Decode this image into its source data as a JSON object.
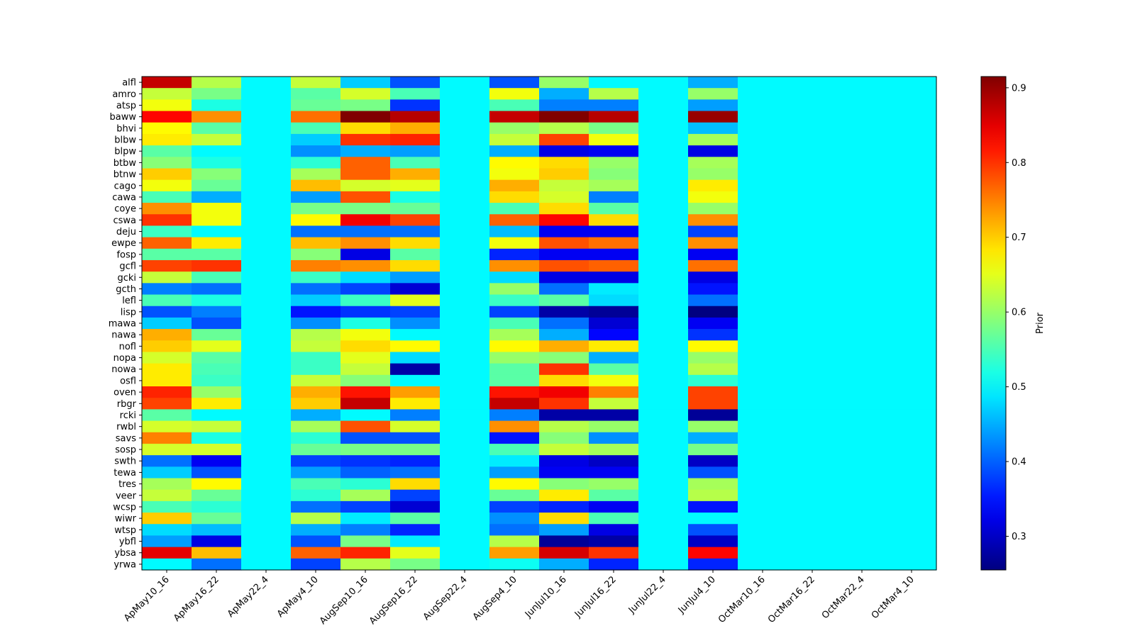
{
  "chart_data": {
    "type": "heatmap",
    "title": "",
    "xlabel": "",
    "ylabel": "",
    "colormap": "jet",
    "colorbar": {
      "label": "Prior",
      "vmin": 0.255,
      "vmax": 0.915,
      "ticks": [
        0.3,
        0.4,
        0.5,
        0.6,
        0.7,
        0.8,
        0.9
      ],
      "tick_labels": [
        "0.3",
        "0.4",
        "0.5",
        "0.6",
        "0.7",
        "0.8",
        "0.9"
      ]
    },
    "x_categories": [
      "ApMay10_16",
      "ApMay16_22",
      "ApMay22_4",
      "ApMay4_10",
      "AugSep10_16",
      "AugSep16_22",
      "AugSep22_4",
      "AugSep4_10",
      "JunJul10_16",
      "JunJul16_22",
      "JunJul22_4",
      "JunJul4_10",
      "OctMar10_16",
      "OctMar16_22",
      "OctMar22_4",
      "OctMar4_10"
    ],
    "y_categories": [
      "alfl",
      "amro",
      "atsp",
      "baww",
      "bhvi",
      "blbw",
      "blpw",
      "btbw",
      "btnw",
      "cago",
      "cawa",
      "coye",
      "cswa",
      "deju",
      "ewpe",
      "fosp",
      "gcfl",
      "gcki",
      "gcth",
      "lefl",
      "lisp",
      "mawa",
      "nawa",
      "nofl",
      "nopa",
      "nowa",
      "osfl",
      "oven",
      "rbgr",
      "rcki",
      "rwbl",
      "savs",
      "sosp",
      "swth",
      "tewa",
      "tres",
      "veer",
      "wcsp",
      "wiwr",
      "wtsp",
      "ybfl",
      "ybsa",
      "yrwa"
    ],
    "values": [
      [
        0.87,
        0.62,
        0.5,
        0.63,
        0.47,
        0.39,
        0.5,
        0.39,
        0.6,
        0.5,
        0.5,
        0.45,
        0.5,
        0.5,
        0.5,
        0.5
      ],
      [
        0.63,
        0.58,
        0.5,
        0.56,
        0.64,
        0.55,
        0.5,
        0.66,
        0.45,
        0.62,
        0.5,
        0.6,
        0.5,
        0.5,
        0.5,
        0.5
      ],
      [
        0.66,
        0.52,
        0.5,
        0.57,
        0.58,
        0.37,
        0.5,
        0.55,
        0.42,
        0.42,
        0.5,
        0.44,
        0.5,
        0.5,
        0.5,
        0.5
      ],
      [
        0.83,
        0.74,
        0.5,
        0.76,
        0.915,
        0.88,
        0.5,
        0.87,
        0.915,
        0.88,
        0.5,
        0.9,
        0.5,
        0.5,
        0.5,
        0.5
      ],
      [
        0.67,
        0.56,
        0.5,
        0.55,
        0.69,
        0.72,
        0.5,
        0.6,
        0.62,
        0.58,
        0.5,
        0.46,
        0.5,
        0.5,
        0.5,
        0.5
      ],
      [
        0.68,
        0.63,
        0.5,
        0.47,
        0.8,
        0.81,
        0.5,
        0.63,
        0.79,
        0.66,
        0.5,
        0.61,
        0.5,
        0.5,
        0.5,
        0.5
      ],
      [
        0.56,
        0.5,
        0.5,
        0.43,
        0.45,
        0.44,
        0.5,
        0.45,
        0.32,
        0.33,
        0.5,
        0.32,
        0.5,
        0.5,
        0.5,
        0.5
      ],
      [
        0.59,
        0.52,
        0.5,
        0.53,
        0.77,
        0.55,
        0.5,
        0.67,
        0.69,
        0.6,
        0.5,
        0.61,
        0.5,
        0.5,
        0.5,
        0.5
      ],
      [
        0.7,
        0.59,
        0.5,
        0.61,
        0.77,
        0.72,
        0.5,
        0.66,
        0.7,
        0.59,
        0.5,
        0.6,
        0.5,
        0.5,
        0.5,
        0.5
      ],
      [
        0.66,
        0.57,
        0.5,
        0.71,
        0.64,
        0.65,
        0.5,
        0.72,
        0.63,
        0.61,
        0.5,
        0.68,
        0.5,
        0.5,
        0.5,
        0.5
      ],
      [
        0.55,
        0.45,
        0.5,
        0.44,
        0.78,
        0.52,
        0.5,
        0.69,
        0.64,
        0.42,
        0.5,
        0.66,
        0.5,
        0.5,
        0.5,
        0.5
      ],
      [
        0.74,
        0.66,
        0.5,
        0.58,
        0.58,
        0.57,
        0.5,
        0.55,
        0.69,
        0.56,
        0.5,
        0.6,
        0.5,
        0.5,
        0.5,
        0.5
      ],
      [
        0.8,
        0.66,
        0.5,
        0.67,
        0.84,
        0.79,
        0.5,
        0.77,
        0.83,
        0.69,
        0.5,
        0.74,
        0.5,
        0.5,
        0.5,
        0.5
      ],
      [
        0.54,
        0.5,
        0.5,
        0.41,
        0.41,
        0.41,
        0.5,
        0.46,
        0.33,
        0.33,
        0.5,
        0.38,
        0.5,
        0.5,
        0.5,
        0.5
      ],
      [
        0.77,
        0.68,
        0.5,
        0.71,
        0.74,
        0.69,
        0.5,
        0.66,
        0.78,
        0.76,
        0.5,
        0.74,
        0.5,
        0.5,
        0.5,
        0.5
      ],
      [
        0.56,
        0.56,
        0.5,
        0.59,
        0.32,
        0.56,
        0.5,
        0.36,
        0.33,
        0.33,
        0.5,
        0.33,
        0.5,
        0.5,
        0.5,
        0.5
      ],
      [
        0.79,
        0.8,
        0.5,
        0.75,
        0.74,
        0.69,
        0.5,
        0.74,
        0.78,
        0.77,
        0.5,
        0.76,
        0.5,
        0.5,
        0.5,
        0.5
      ],
      [
        0.63,
        0.55,
        0.5,
        0.54,
        0.48,
        0.44,
        0.5,
        0.48,
        0.32,
        0.32,
        0.5,
        0.32,
        0.5,
        0.5,
        0.5,
        0.5
      ],
      [
        0.42,
        0.41,
        0.5,
        0.41,
        0.38,
        0.31,
        0.5,
        0.6,
        0.41,
        0.49,
        0.5,
        0.35,
        0.5,
        0.5,
        0.5,
        0.5
      ],
      [
        0.55,
        0.52,
        0.5,
        0.47,
        0.54,
        0.65,
        0.5,
        0.54,
        0.56,
        0.48,
        0.5,
        0.41,
        0.5,
        0.5,
        0.5,
        0.5
      ],
      [
        0.39,
        0.42,
        0.5,
        0.35,
        0.37,
        0.38,
        0.5,
        0.38,
        0.28,
        0.27,
        0.5,
        0.255,
        0.5,
        0.5,
        0.5,
        0.5
      ],
      [
        0.47,
        0.39,
        0.5,
        0.43,
        0.52,
        0.43,
        0.5,
        0.55,
        0.41,
        0.31,
        0.5,
        0.33,
        0.5,
        0.5,
        0.5,
        0.5
      ],
      [
        0.72,
        0.57,
        0.5,
        0.62,
        0.66,
        0.5,
        0.5,
        0.61,
        0.45,
        0.34,
        0.5,
        0.37,
        0.5,
        0.5,
        0.5,
        0.5
      ],
      [
        0.7,
        0.65,
        0.5,
        0.63,
        0.69,
        0.67,
        0.5,
        0.67,
        0.72,
        0.68,
        0.5,
        0.67,
        0.5,
        0.5,
        0.5,
        0.5
      ],
      [
        0.64,
        0.56,
        0.5,
        0.54,
        0.65,
        0.48,
        0.5,
        0.6,
        0.59,
        0.45,
        0.5,
        0.6,
        0.5,
        0.5,
        0.5,
        0.5
      ],
      [
        0.68,
        0.55,
        0.5,
        0.54,
        0.63,
        0.28,
        0.5,
        0.56,
        0.8,
        0.56,
        0.5,
        0.62,
        0.5,
        0.5,
        0.5,
        0.5
      ],
      [
        0.68,
        0.54,
        0.5,
        0.63,
        0.59,
        0.5,
        0.5,
        0.56,
        0.69,
        0.66,
        0.5,
        0.53,
        0.5,
        0.5,
        0.5,
        0.5
      ],
      [
        0.81,
        0.6,
        0.5,
        0.72,
        0.82,
        0.73,
        0.5,
        0.82,
        0.84,
        0.75,
        0.5,
        0.79,
        0.5,
        0.5,
        0.5,
        0.5
      ],
      [
        0.79,
        0.68,
        0.5,
        0.7,
        0.87,
        0.68,
        0.5,
        0.87,
        0.8,
        0.63,
        0.5,
        0.79,
        0.5,
        0.5,
        0.5,
        0.5
      ],
      [
        0.56,
        0.5,
        0.5,
        0.45,
        0.5,
        0.42,
        0.5,
        0.42,
        0.28,
        0.28,
        0.5,
        0.27,
        0.5,
        0.5,
        0.5,
        0.5
      ],
      [
        0.64,
        0.63,
        0.5,
        0.61,
        0.78,
        0.64,
        0.5,
        0.74,
        0.62,
        0.6,
        0.5,
        0.6,
        0.5,
        0.5,
        0.5,
        0.5
      ],
      [
        0.75,
        0.52,
        0.5,
        0.53,
        0.39,
        0.39,
        0.5,
        0.35,
        0.59,
        0.43,
        0.5,
        0.45,
        0.5,
        0.5,
        0.5,
        0.5
      ],
      [
        0.64,
        0.64,
        0.5,
        0.57,
        0.58,
        0.58,
        0.5,
        0.55,
        0.63,
        0.61,
        0.5,
        0.58,
        0.5,
        0.5,
        0.5,
        0.5
      ],
      [
        0.41,
        0.33,
        0.5,
        0.38,
        0.37,
        0.36,
        0.5,
        0.49,
        0.32,
        0.3,
        0.5,
        0.3,
        0.5,
        0.5,
        0.5,
        0.5
      ],
      [
        0.47,
        0.39,
        0.5,
        0.44,
        0.4,
        0.41,
        0.5,
        0.44,
        0.33,
        0.33,
        0.5,
        0.39,
        0.5,
        0.5,
        0.5,
        0.5
      ],
      [
        0.61,
        0.67,
        0.5,
        0.55,
        0.53,
        0.69,
        0.5,
        0.67,
        0.59,
        0.6,
        0.5,
        0.61,
        0.5,
        0.5,
        0.5,
        0.5
      ],
      [
        0.63,
        0.57,
        0.5,
        0.53,
        0.61,
        0.38,
        0.5,
        0.57,
        0.68,
        0.56,
        0.5,
        0.62,
        0.5,
        0.5,
        0.5,
        0.5
      ],
      [
        0.55,
        0.53,
        0.5,
        0.41,
        0.38,
        0.31,
        0.5,
        0.38,
        0.36,
        0.33,
        0.5,
        0.35,
        0.5,
        0.5,
        0.5,
        0.5
      ],
      [
        0.7,
        0.57,
        0.5,
        0.62,
        0.49,
        0.56,
        0.5,
        0.43,
        0.69,
        0.55,
        0.5,
        0.5,
        0.5,
        0.5,
        0.5,
        0.5
      ],
      [
        0.48,
        0.46,
        0.5,
        0.45,
        0.42,
        0.36,
        0.5,
        0.41,
        0.44,
        0.32,
        0.5,
        0.39,
        0.5,
        0.5,
        0.5,
        0.5
      ],
      [
        0.44,
        0.32,
        0.5,
        0.39,
        0.58,
        0.49,
        0.5,
        0.62,
        0.27,
        0.28,
        0.5,
        0.3,
        0.5,
        0.5,
        0.5,
        0.5
      ],
      [
        0.85,
        0.71,
        0.5,
        0.77,
        0.81,
        0.65,
        0.5,
        0.73,
        0.86,
        0.8,
        0.5,
        0.83,
        0.5,
        0.5,
        0.5,
        0.5
      ],
      [
        0.5,
        0.41,
        0.5,
        0.38,
        0.62,
        0.58,
        0.5,
        0.51,
        0.45,
        0.36,
        0.5,
        0.36,
        0.5,
        0.5,
        0.5,
        0.5
      ]
    ]
  }
}
